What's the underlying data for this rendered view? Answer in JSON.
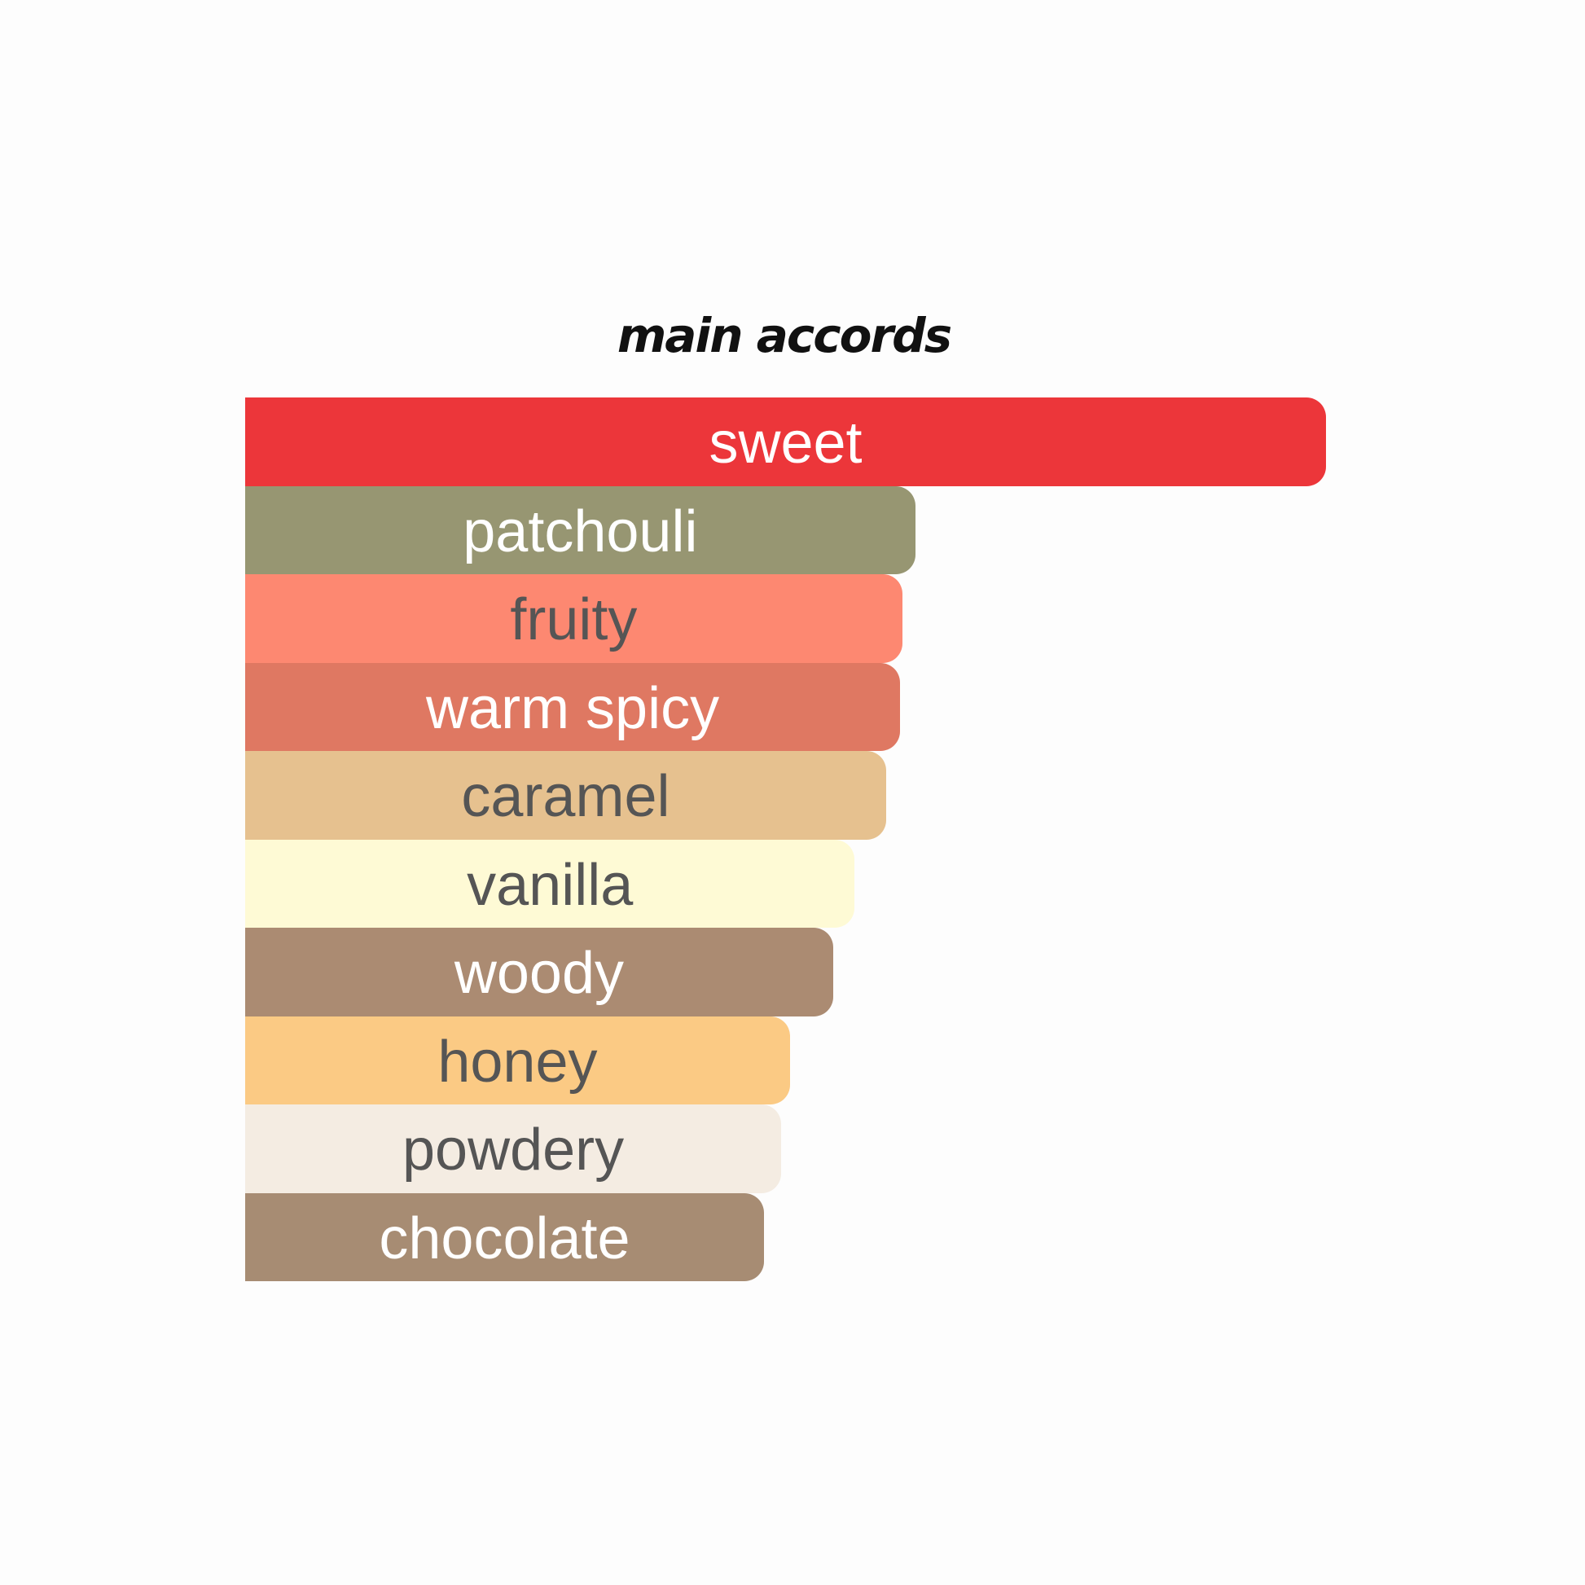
{
  "chart_data": {
    "type": "bar",
    "orientation": "horizontal",
    "title": "main accords",
    "categories": [
      "sweet",
      "patchouli",
      "fruity",
      "warm spicy",
      "caramel",
      "vanilla",
      "woody",
      "honey",
      "powdery",
      "chocolate"
    ],
    "values": [
      100,
      62.0,
      60.8,
      60.6,
      59.3,
      56.4,
      54.4,
      50.4,
      49.6,
      48.0
    ],
    "colors": [
      "#ec363a",
      "#979672",
      "#fd8871",
      "#df7862",
      "#e6c18f",
      "#fefad5",
      "#ab8b72",
      "#fbca84",
      "#f4ece2",
      "#a78c73"
    ],
    "label_colors": [
      "#ffffff",
      "#ffffff",
      "#555555",
      "#ffffff",
      "#555555",
      "#555555",
      "#ffffff",
      "#555555",
      "#555555",
      "#ffffff"
    ],
    "xlim": [
      0,
      100
    ],
    "grid": false,
    "axes_visible": false
  }
}
